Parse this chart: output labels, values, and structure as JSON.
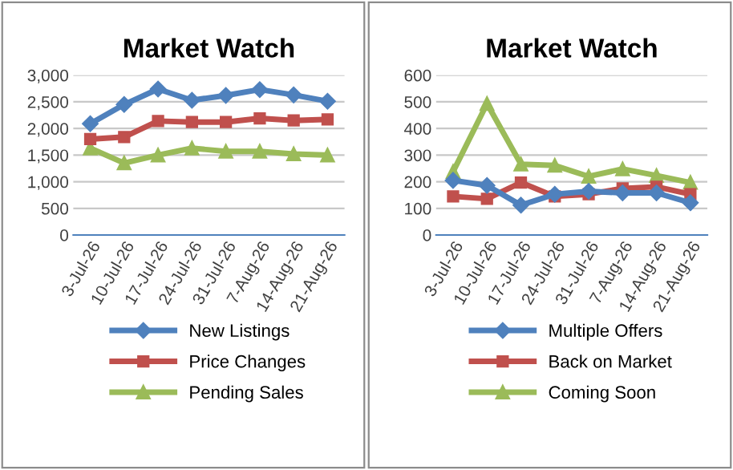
{
  "chart_data": [
    {
      "type": "line",
      "title": "Market Watch",
      "categories": [
        "3-Jul-26",
        "10-Jul-26",
        "17-Jul-26",
        "24-Jul-26",
        "31-Jul-26",
        "7-Aug-26",
        "14-Aug-26",
        "21-Aug-26"
      ],
      "ylim": [
        0,
        3000
      ],
      "yticks": [
        {
          "value": 0,
          "label": "0"
        },
        {
          "value": 500,
          "label": "500"
        },
        {
          "value": 1000,
          "label": "1,000"
        },
        {
          "value": 1500,
          "label": "1,500"
        },
        {
          "value": 2000,
          "label": "2,000"
        },
        {
          "value": 2500,
          "label": "2,500"
        },
        {
          "value": 3000,
          "label": "3,000"
        }
      ],
      "grid": "y",
      "legend": "bottom",
      "series": [
        {
          "name": "New Listings",
          "color": "#4f81bd",
          "marker": "diamond",
          "values": [
            2090,
            2450,
            2740,
            2530,
            2620,
            2730,
            2630,
            2510
          ]
        },
        {
          "name": "Price Changes",
          "color": "#c0504d",
          "marker": "square",
          "values": [
            1800,
            1840,
            2140,
            2120,
            2120,
            2190,
            2150,
            2170
          ]
        },
        {
          "name": "Pending Sales",
          "color": "#9bbb59",
          "marker": "triangle",
          "values": [
            1630,
            1350,
            1500,
            1630,
            1570,
            1570,
            1520,
            1500
          ]
        }
      ]
    },
    {
      "type": "line",
      "title": "Market Watch",
      "categories": [
        "3-Jul-26",
        "10-Jul-26",
        "17-Jul-26",
        "24-Jul-26",
        "31-Jul-26",
        "7-Aug-26",
        "14-Aug-26",
        "21-Aug-26"
      ],
      "ylim": [
        0,
        600
      ],
      "yticks": [
        0,
        100,
        200,
        300,
        400,
        500,
        600
      ],
      "grid": "y",
      "legend": "bottom",
      "series": [
        {
          "name": "Multiple Offers",
          "color": "#4f81bd",
          "marker": "diamond",
          "values": [
            205,
            186,
            112,
            153,
            164,
            158,
            158,
            121
          ]
        },
        {
          "name": "Back on Market",
          "color": "#c0504d",
          "marker": "square",
          "values": [
            145,
            136,
            197,
            145,
            153,
            175,
            181,
            153
          ]
        },
        {
          "name": "Coming Soon",
          "color": "#9bbb59",
          "marker": "triangle",
          "values": [
            238,
            493,
            266,
            261,
            220,
            248,
            223,
            197
          ]
        }
      ]
    }
  ]
}
